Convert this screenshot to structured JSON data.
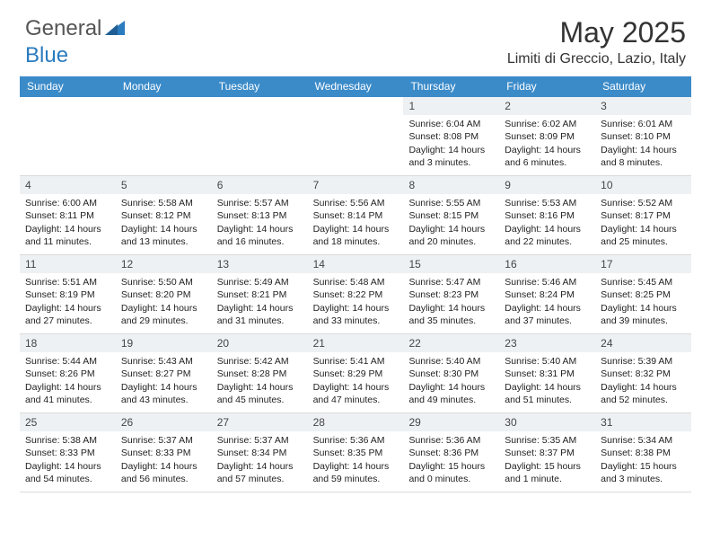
{
  "logo": {
    "general": "General",
    "blue": "Blue"
  },
  "title": "May 2025",
  "location": "Limiti di Greccio, Lazio, Italy",
  "colors": {
    "header_bg": "#3b8bc9",
    "header_text": "#ffffff",
    "daynum_bg": "#eef1f4",
    "body_text": "#222222",
    "divider": "#d9d9d9",
    "logo_gray": "#555555",
    "logo_blue": "#2b7bbf"
  },
  "weekdays": [
    "Sunday",
    "Monday",
    "Tuesday",
    "Wednesday",
    "Thursday",
    "Friday",
    "Saturday"
  ],
  "weeks": [
    [
      null,
      null,
      null,
      null,
      {
        "n": "1",
        "sunrise": "Sunrise: 6:04 AM",
        "sunset": "Sunset: 8:08 PM",
        "day1": "Daylight: 14 hours",
        "day2": "and 3 minutes."
      },
      {
        "n": "2",
        "sunrise": "Sunrise: 6:02 AM",
        "sunset": "Sunset: 8:09 PM",
        "day1": "Daylight: 14 hours",
        "day2": "and 6 minutes."
      },
      {
        "n": "3",
        "sunrise": "Sunrise: 6:01 AM",
        "sunset": "Sunset: 8:10 PM",
        "day1": "Daylight: 14 hours",
        "day2": "and 8 minutes."
      }
    ],
    [
      {
        "n": "4",
        "sunrise": "Sunrise: 6:00 AM",
        "sunset": "Sunset: 8:11 PM",
        "day1": "Daylight: 14 hours",
        "day2": "and 11 minutes."
      },
      {
        "n": "5",
        "sunrise": "Sunrise: 5:58 AM",
        "sunset": "Sunset: 8:12 PM",
        "day1": "Daylight: 14 hours",
        "day2": "and 13 minutes."
      },
      {
        "n": "6",
        "sunrise": "Sunrise: 5:57 AM",
        "sunset": "Sunset: 8:13 PM",
        "day1": "Daylight: 14 hours",
        "day2": "and 16 minutes."
      },
      {
        "n": "7",
        "sunrise": "Sunrise: 5:56 AM",
        "sunset": "Sunset: 8:14 PM",
        "day1": "Daylight: 14 hours",
        "day2": "and 18 minutes."
      },
      {
        "n": "8",
        "sunrise": "Sunrise: 5:55 AM",
        "sunset": "Sunset: 8:15 PM",
        "day1": "Daylight: 14 hours",
        "day2": "and 20 minutes."
      },
      {
        "n": "9",
        "sunrise": "Sunrise: 5:53 AM",
        "sunset": "Sunset: 8:16 PM",
        "day1": "Daylight: 14 hours",
        "day2": "and 22 minutes."
      },
      {
        "n": "10",
        "sunrise": "Sunrise: 5:52 AM",
        "sunset": "Sunset: 8:17 PM",
        "day1": "Daylight: 14 hours",
        "day2": "and 25 minutes."
      }
    ],
    [
      {
        "n": "11",
        "sunrise": "Sunrise: 5:51 AM",
        "sunset": "Sunset: 8:19 PM",
        "day1": "Daylight: 14 hours",
        "day2": "and 27 minutes."
      },
      {
        "n": "12",
        "sunrise": "Sunrise: 5:50 AM",
        "sunset": "Sunset: 8:20 PM",
        "day1": "Daylight: 14 hours",
        "day2": "and 29 minutes."
      },
      {
        "n": "13",
        "sunrise": "Sunrise: 5:49 AM",
        "sunset": "Sunset: 8:21 PM",
        "day1": "Daylight: 14 hours",
        "day2": "and 31 minutes."
      },
      {
        "n": "14",
        "sunrise": "Sunrise: 5:48 AM",
        "sunset": "Sunset: 8:22 PM",
        "day1": "Daylight: 14 hours",
        "day2": "and 33 minutes."
      },
      {
        "n": "15",
        "sunrise": "Sunrise: 5:47 AM",
        "sunset": "Sunset: 8:23 PM",
        "day1": "Daylight: 14 hours",
        "day2": "and 35 minutes."
      },
      {
        "n": "16",
        "sunrise": "Sunrise: 5:46 AM",
        "sunset": "Sunset: 8:24 PM",
        "day1": "Daylight: 14 hours",
        "day2": "and 37 minutes."
      },
      {
        "n": "17",
        "sunrise": "Sunrise: 5:45 AM",
        "sunset": "Sunset: 8:25 PM",
        "day1": "Daylight: 14 hours",
        "day2": "and 39 minutes."
      }
    ],
    [
      {
        "n": "18",
        "sunrise": "Sunrise: 5:44 AM",
        "sunset": "Sunset: 8:26 PM",
        "day1": "Daylight: 14 hours",
        "day2": "and 41 minutes."
      },
      {
        "n": "19",
        "sunrise": "Sunrise: 5:43 AM",
        "sunset": "Sunset: 8:27 PM",
        "day1": "Daylight: 14 hours",
        "day2": "and 43 minutes."
      },
      {
        "n": "20",
        "sunrise": "Sunrise: 5:42 AM",
        "sunset": "Sunset: 8:28 PM",
        "day1": "Daylight: 14 hours",
        "day2": "and 45 minutes."
      },
      {
        "n": "21",
        "sunrise": "Sunrise: 5:41 AM",
        "sunset": "Sunset: 8:29 PM",
        "day1": "Daylight: 14 hours",
        "day2": "and 47 minutes."
      },
      {
        "n": "22",
        "sunrise": "Sunrise: 5:40 AM",
        "sunset": "Sunset: 8:30 PM",
        "day1": "Daylight: 14 hours",
        "day2": "and 49 minutes."
      },
      {
        "n": "23",
        "sunrise": "Sunrise: 5:40 AM",
        "sunset": "Sunset: 8:31 PM",
        "day1": "Daylight: 14 hours",
        "day2": "and 51 minutes."
      },
      {
        "n": "24",
        "sunrise": "Sunrise: 5:39 AM",
        "sunset": "Sunset: 8:32 PM",
        "day1": "Daylight: 14 hours",
        "day2": "and 52 minutes."
      }
    ],
    [
      {
        "n": "25",
        "sunrise": "Sunrise: 5:38 AM",
        "sunset": "Sunset: 8:33 PM",
        "day1": "Daylight: 14 hours",
        "day2": "and 54 minutes."
      },
      {
        "n": "26",
        "sunrise": "Sunrise: 5:37 AM",
        "sunset": "Sunset: 8:33 PM",
        "day1": "Daylight: 14 hours",
        "day2": "and 56 minutes."
      },
      {
        "n": "27",
        "sunrise": "Sunrise: 5:37 AM",
        "sunset": "Sunset: 8:34 PM",
        "day1": "Daylight: 14 hours",
        "day2": "and 57 minutes."
      },
      {
        "n": "28",
        "sunrise": "Sunrise: 5:36 AM",
        "sunset": "Sunset: 8:35 PM",
        "day1": "Daylight: 14 hours",
        "day2": "and 59 minutes."
      },
      {
        "n": "29",
        "sunrise": "Sunrise: 5:36 AM",
        "sunset": "Sunset: 8:36 PM",
        "day1": "Daylight: 15 hours",
        "day2": "and 0 minutes."
      },
      {
        "n": "30",
        "sunrise": "Sunrise: 5:35 AM",
        "sunset": "Sunset: 8:37 PM",
        "day1": "Daylight: 15 hours",
        "day2": "and 1 minute."
      },
      {
        "n": "31",
        "sunrise": "Sunrise: 5:34 AM",
        "sunset": "Sunset: 8:38 PM",
        "day1": "Daylight: 15 hours",
        "day2": "and 3 minutes."
      }
    ]
  ]
}
